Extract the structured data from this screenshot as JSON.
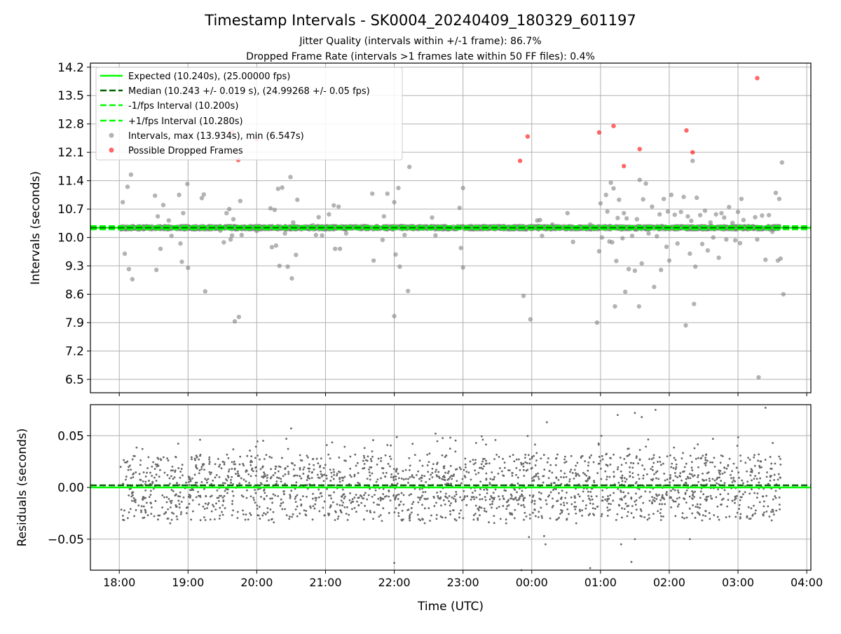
{
  "figure": {
    "title": "Timestamp Intervals - SK0004_20240409_180329_601197",
    "subtitle_line1": "Jitter Quality (intervals within +/-1 frame): 86.7%",
    "subtitle_line2": "Dropped Frame Rate (intervals >1 frames late within 50 FF files): 0.4%"
  },
  "colors": {
    "expected": "#00ff00",
    "median": "#006400",
    "points": "#808080",
    "dropped": "#ff0000",
    "grid": "#b0b0b0"
  },
  "chart_data": [
    {
      "type": "scatter",
      "ylabel": "Intervals (seconds)",
      "xlabel": "",
      "x_unit": "hours since 18:00 UTC (2024-04-09)",
      "xlim": [
        -0.42,
        10.06
      ],
      "ylim": [
        6.17,
        14.3
      ],
      "yticks": [
        6.5,
        7.2,
        7.9,
        8.6,
        9.3,
        10.0,
        10.7,
        11.4,
        12.1,
        12.8,
        13.5,
        14.2
      ],
      "ytick_labels": [
        "6.5",
        "7.2",
        "7.9",
        "8.6",
        "9.3",
        "10.0",
        "10.7",
        "11.4",
        "12.1",
        "12.8",
        "13.5",
        "14.2"
      ],
      "grid": true,
      "legend_position": "upper-left",
      "legend": [
        {
          "label": "Expected (10.240s), (25.00000 fps)",
          "style": "solid",
          "color": "#00ff00"
        },
        {
          "label": "Median (10.243 +/- 0.019 s), (24.99268 +/- 0.05 fps)",
          "style": "dashed",
          "color": "#006400"
        },
        {
          "label": "-1/fps Interval (10.200s)",
          "style": "dashed",
          "color": "#00ff00"
        },
        {
          "label": "+1/fps Interval (10.280s)",
          "style": "dashed",
          "color": "#00ff00"
        },
        {
          "label": "Intervals, max (13.934s), min (6.547s)",
          "style": "marker",
          "color": "#808080"
        },
        {
          "label": "Possible Dropped Frames",
          "style": "marker",
          "color": "#ff0000"
        }
      ],
      "reference_lines": [
        {
          "name": "expected",
          "y": 10.24
        },
        {
          "name": "median",
          "y": 10.243
        },
        {
          "name": "minus_1fps",
          "y": 10.2
        },
        {
          "name": "plus_1fps",
          "y": 10.28
        }
      ],
      "dense_band": {
        "x_start": 0.02,
        "x_end": 9.6,
        "y_center": 10.24,
        "y_spread": 0.04,
        "note": "~3400 intervals clustered near 10.24 s"
      },
      "outliers": [
        [
          0.05,
          10.87
        ],
        [
          0.08,
          9.6
        ],
        [
          0.12,
          11.25
        ],
        [
          0.14,
          9.22
        ],
        [
          0.17,
          11.55
        ],
        [
          0.19,
          8.97
        ],
        [
          0.52,
          11.03
        ],
        [
          0.54,
          9.2
        ],
        [
          0.56,
          10.52
        ],
        [
          0.6,
          9.72
        ],
        [
          0.64,
          10.8
        ],
        [
          0.72,
          10.42
        ],
        [
          0.76,
          10.04
        ],
        [
          0.87,
          11.05
        ],
        [
          0.89,
          9.85
        ],
        [
          0.91,
          9.4
        ],
        [
          0.93,
          10.6
        ],
        [
          0.95,
          10.2
        ],
        [
          0.99,
          11.32
        ],
        [
          1.0,
          9.25
        ],
        [
          1.2,
          10.97
        ],
        [
          1.23,
          11.06
        ],
        [
          1.25,
          8.67
        ],
        [
          1.47,
          10.17
        ],
        [
          1.52,
          9.88
        ],
        [
          1.56,
          10.6
        ],
        [
          1.6,
          10.7
        ],
        [
          1.62,
          9.95
        ],
        [
          1.64,
          10.05
        ],
        [
          1.66,
          10.45
        ],
        [
          1.68,
          7.93
        ],
        [
          1.74,
          8.04
        ],
        [
          1.76,
          10.9
        ],
        [
          1.78,
          10.06
        ],
        [
          2.0,
          10.16
        ],
        [
          2.2,
          10.72
        ],
        [
          2.22,
          9.76
        ],
        [
          2.26,
          10.68
        ],
        [
          2.28,
          9.8
        ],
        [
          2.31,
          11.2
        ],
        [
          2.33,
          9.3
        ],
        [
          2.37,
          11.23
        ],
        [
          2.41,
          10.1
        ],
        [
          2.45,
          9.28
        ],
        [
          2.49,
          11.49
        ],
        [
          2.51,
          8.99
        ],
        [
          2.53,
          10.37
        ],
        [
          2.57,
          9.57
        ],
        [
          2.59,
          10.93
        ],
        [
          2.76,
          10.2
        ],
        [
          2.82,
          10.3
        ],
        [
          2.86,
          10.06
        ],
        [
          2.9,
          10.5
        ],
        [
          2.95,
          10.05
        ],
        [
          2.98,
          10.2
        ],
        [
          3.0,
          10.25
        ],
        [
          3.05,
          10.57
        ],
        [
          3.12,
          10.79
        ],
        [
          3.14,
          9.72
        ],
        [
          3.19,
          10.76
        ],
        [
          3.21,
          9.72
        ],
        [
          3.3,
          10.1
        ],
        [
          3.68,
          11.08
        ],
        [
          3.7,
          9.43
        ],
        [
          3.83,
          9.94
        ],
        [
          3.85,
          10.52
        ],
        [
          3.9,
          11.08
        ],
        [
          4.0,
          8.06
        ],
        [
          4.0,
          10.87
        ],
        [
          4.02,
          9.58
        ],
        [
          4.06,
          11.22
        ],
        [
          4.08,
          9.28
        ],
        [
          4.14,
          10.28
        ],
        [
          4.15,
          10.06
        ],
        [
          4.22,
          11.74
        ],
        [
          4.2,
          8.68
        ],
        [
          4.55,
          10.49
        ],
        [
          4.6,
          10.05
        ],
        [
          4.95,
          10.73
        ],
        [
          4.97,
          9.74
        ],
        [
          5.0,
          11.22
        ],
        [
          5.0,
          9.26
        ],
        [
          5.88,
          8.56
        ],
        [
          5.98,
          7.98
        ],
        [
          6.02,
          10.22
        ],
        [
          6.08,
          10.42
        ],
        [
          6.12,
          10.43
        ],
        [
          6.15,
          10.04
        ],
        [
          6.3,
          10.32
        ],
        [
          6.52,
          10.6
        ],
        [
          6.6,
          9.89
        ],
        [
          6.75,
          10.25
        ],
        [
          6.85,
          10.32
        ],
        [
          6.95,
          7.9
        ],
        [
          6.98,
          9.66
        ],
        [
          7.0,
          10.84
        ],
        [
          7.02,
          10.0
        ],
        [
          7.08,
          11.05
        ],
        [
          7.1,
          10.64
        ],
        [
          7.13,
          9.9
        ],
        [
          7.15,
          11.35
        ],
        [
          7.17,
          9.88
        ],
        [
          7.19,
          11.21
        ],
        [
          7.21,
          8.3
        ],
        [
          7.23,
          9.42
        ],
        [
          7.25,
          10.48
        ],
        [
          7.27,
          10.93
        ],
        [
          7.3,
          10.2
        ],
        [
          7.32,
          9.98
        ],
        [
          7.34,
          10.6
        ],
        [
          7.36,
          8.66
        ],
        [
          7.38,
          10.47
        ],
        [
          7.41,
          9.22
        ],
        [
          7.46,
          10.04
        ],
        [
          7.5,
          9.18
        ],
        [
          7.53,
          10.45
        ],
        [
          7.56,
          8.3
        ],
        [
          7.57,
          11.42
        ],
        [
          7.6,
          9.36
        ],
        [
          7.62,
          10.94
        ],
        [
          7.66,
          11.33
        ],
        [
          7.7,
          10.1
        ],
        [
          7.75,
          10.76
        ],
        [
          7.78,
          8.78
        ],
        [
          7.82,
          10.03
        ],
        [
          7.86,
          10.57
        ],
        [
          7.88,
          9.2
        ],
        [
          7.92,
          10.95
        ],
        [
          7.96,
          9.77
        ],
        [
          7.98,
          10.64
        ],
        [
          8.0,
          9.43
        ],
        [
          8.03,
          11.05
        ],
        [
          8.08,
          10.56
        ],
        [
          8.12,
          9.85
        ],
        [
          8.17,
          10.63
        ],
        [
          8.21,
          11.0
        ],
        [
          8.24,
          7.83
        ],
        [
          8.27,
          10.52
        ],
        [
          8.3,
          9.6
        ],
        [
          8.32,
          10.41
        ],
        [
          8.34,
          11.89
        ],
        [
          8.36,
          8.36
        ],
        [
          8.38,
          9.28
        ],
        [
          8.4,
          10.98
        ],
        [
          8.45,
          10.55
        ],
        [
          8.48,
          9.84
        ],
        [
          8.52,
          10.66
        ],
        [
          8.56,
          9.68
        ],
        [
          8.6,
          10.37
        ],
        [
          8.64,
          10.0
        ],
        [
          8.68,
          10.57
        ],
        [
          8.72,
          9.5
        ],
        [
          8.76,
          10.6
        ],
        [
          8.8,
          10.49
        ],
        [
          8.83,
          9.95
        ],
        [
          8.87,
          10.75
        ],
        [
          8.92,
          10.36
        ],
        [
          8.96,
          9.93
        ],
        [
          9.0,
          10.63
        ],
        [
          9.03,
          9.86
        ],
        [
          9.05,
          10.95
        ],
        [
          9.08,
          10.43
        ],
        [
          9.25,
          10.5
        ],
        [
          9.28,
          9.95
        ],
        [
          9.35,
          10.54
        ],
        [
          9.4,
          9.45
        ],
        [
          9.45,
          10.55
        ],
        [
          9.5,
          10.14
        ],
        [
          9.55,
          11.1
        ],
        [
          9.58,
          9.43
        ],
        [
          9.6,
          10.95
        ],
        [
          9.62,
          9.48
        ],
        [
          9.64,
          11.85
        ],
        [
          9.66,
          8.6
        ],
        [
          9.3,
          6.55
        ]
      ],
      "dropped_frames": [
        [
          1.64,
          12.59
        ],
        [
          1.73,
          11.91
        ],
        [
          2.0,
          12.42
        ],
        [
          5.83,
          11.89
        ],
        [
          5.94,
          12.49
        ],
        [
          6.98,
          12.59
        ],
        [
          7.19,
          12.75
        ],
        [
          7.34,
          11.76
        ],
        [
          7.57,
          12.18
        ],
        [
          8.25,
          12.64
        ],
        [
          8.34,
          12.1
        ],
        [
          9.28,
          13.93
        ]
      ]
    },
    {
      "type": "scatter",
      "ylabel": "Residuals (seconds)",
      "xlabel": "Time (UTC)",
      "xlim": [
        -0.42,
        10.06
      ],
      "ylim": [
        -0.08,
        0.08
      ],
      "yticks": [
        -0.05,
        0.0,
        0.05
      ],
      "ytick_labels": [
        "−0.05",
        "0.00",
        "0.05"
      ],
      "xticks": [
        0,
        1,
        2,
        3,
        4,
        5,
        6,
        7,
        8,
        9,
        10
      ],
      "xtick_labels": [
        "18:00",
        "19:00",
        "20:00",
        "21:00",
        "22:00",
        "23:00",
        "00:00",
        "01:00",
        "02:00",
        "03:00",
        "04:00"
      ],
      "grid": true,
      "reference_lines": [
        {
          "name": "zero",
          "y": 0.0
        },
        {
          "name": "median_offset",
          "y": 0.002
        }
      ],
      "residual_band": {
        "x_start": 0.02,
        "x_end": 9.62,
        "levels": [
          -0.02,
          0.0,
          0.02
        ],
        "spread": 0.02,
        "note": "~2000 residuals between -0.035 and 0.05 s"
      },
      "residual_outliers": [
        [
          5.96,
          -0.048
        ],
        [
          6.2,
          -0.055
        ],
        [
          6.18,
          -0.047
        ],
        [
          6.22,
          0.063
        ],
        [
          7.5,
          -0.05
        ],
        [
          7.3,
          -0.055
        ],
        [
          7.45,
          -0.072
        ],
        [
          7.25,
          0.07
        ],
        [
          7.6,
          0.068
        ],
        [
          7.8,
          0.075
        ],
        [
          8.3,
          -0.05
        ],
        [
          9.4,
          0.077
        ],
        [
          4.0,
          -0.073
        ],
        [
          5.85,
          -0.08
        ],
        [
          6.85,
          -0.078
        ],
        [
          7.5,
          0.072
        ],
        [
          2.5,
          0.057
        ],
        [
          4.6,
          0.052
        ]
      ]
    }
  ]
}
